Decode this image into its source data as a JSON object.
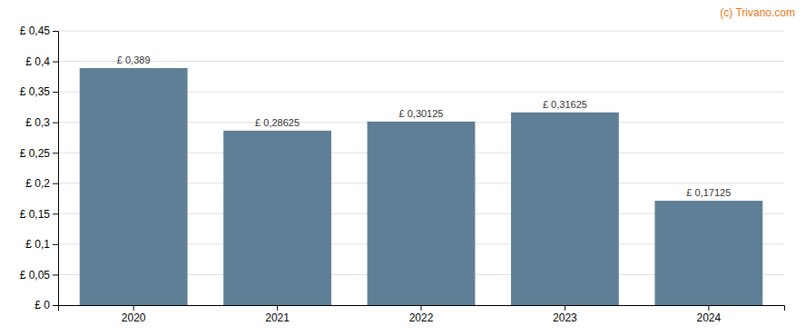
{
  "chart_data": {
    "type": "bar",
    "categories": [
      "2020",
      "2021",
      "2022",
      "2023",
      "2024"
    ],
    "values": [
      0.389,
      0.28625,
      0.30125,
      0.31625,
      0.17125
    ],
    "value_labels": [
      "£ 0,389",
      "£ 0,28625",
      "£ 0,30125",
      "£ 0,31625",
      "£ 0,17125"
    ],
    "data_labels": true,
    "color": "#5f7f96",
    "ylim": [
      0,
      0.45
    ],
    "yticks": [
      {
        "value": 0,
        "label": "£ 0"
      },
      {
        "value": 0.05,
        "label": "£ 0,05"
      },
      {
        "value": 0.1,
        "label": "£ 0,1"
      },
      {
        "value": 0.15,
        "label": "£ 0,15"
      },
      {
        "value": 0.2,
        "label": "£ 0,2"
      },
      {
        "value": 0.25,
        "label": "£ 0,25"
      },
      {
        "value": 0.3,
        "label": "£ 0,3"
      },
      {
        "value": 0.35,
        "label": "£ 0,35"
      },
      {
        "value": 0.4,
        "label": "£ 0,4"
      },
      {
        "value": 0.45,
        "label": "£ 0,45"
      }
    ],
    "grid": true,
    "annotations": [
      {
        "text": "(c) Trivano.com",
        "color": "#e87722"
      }
    ]
  }
}
